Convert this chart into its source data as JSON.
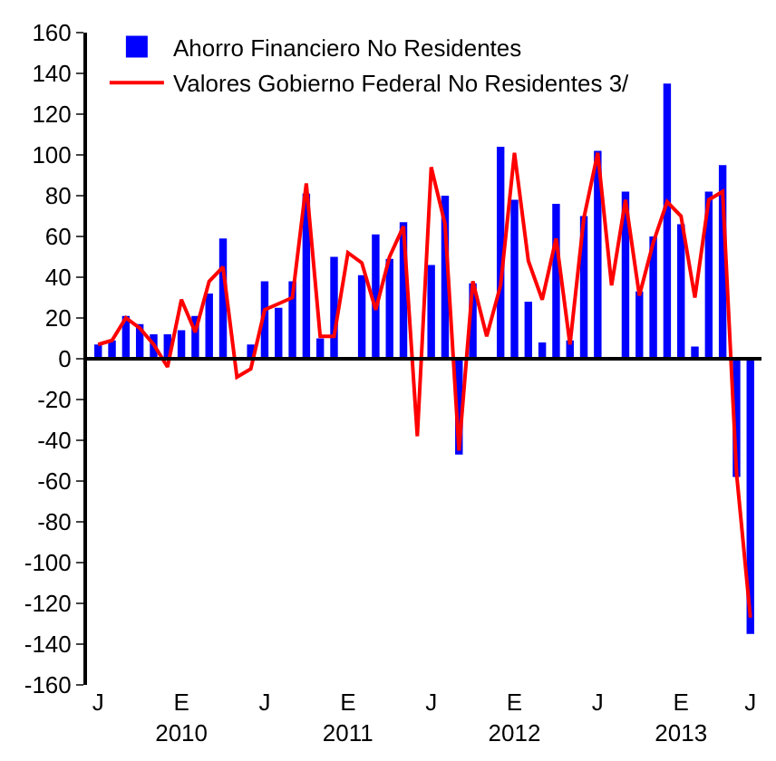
{
  "chart_data": {
    "type": "bar",
    "categories": [
      "J",
      null,
      null,
      null,
      null,
      null,
      "E\n2010",
      null,
      null,
      null,
      null,
      null,
      "J",
      null,
      null,
      null,
      null,
      null,
      "E\n2011",
      null,
      null,
      null,
      null,
      null,
      "J",
      null,
      null,
      null,
      null,
      null,
      "E\n2012",
      null,
      null,
      null,
      null,
      null,
      "J",
      null,
      null,
      null,
      null,
      null,
      "E\n2013",
      null,
      null,
      null,
      null,
      "J"
    ],
    "series": [
      {
        "name": "Ahorro Financiero No Residentes",
        "color": "#0000ff",
        "values": [
          7,
          9,
          21,
          17,
          12,
          12,
          14,
          21,
          32,
          59,
          0,
          7,
          38,
          25,
          38,
          81,
          10,
          50,
          0,
          41,
          61,
          49,
          67,
          0,
          46,
          80,
          -47,
          37,
          0,
          104,
          78,
          28,
          8,
          76,
          9,
          70,
          102,
          0,
          82,
          33,
          60,
          135,
          66,
          6,
          82,
          95,
          -58,
          -135
        ]
      },
      {
        "name": "Valores Gobierno Federal No Residentes 3/",
        "type": "line",
        "color": "#ff0000",
        "values": [
          7,
          9,
          20,
          15,
          7,
          -4,
          29,
          13,
          38,
          45,
          -9,
          -5,
          24,
          27,
          30,
          86,
          11,
          11,
          52,
          47,
          24,
          50,
          65,
          -38,
          94,
          66,
          -45,
          38,
          11,
          36,
          101,
          48,
          29,
          59,
          7,
          69,
          101,
          36,
          78,
          31,
          57,
          77,
          70,
          30,
          78,
          82,
          -56,
          -127
        ]
      }
    ],
    "ylim": [
      -160,
      160
    ],
    "yticks": [
      -160,
      -140,
      -120,
      -100,
      -80,
      -60,
      -40,
      -20,
      0,
      20,
      40,
      60,
      80,
      100,
      120,
      140,
      160
    ],
    "legend": "top",
    "line_style": "solid",
    "marker": "none"
  }
}
